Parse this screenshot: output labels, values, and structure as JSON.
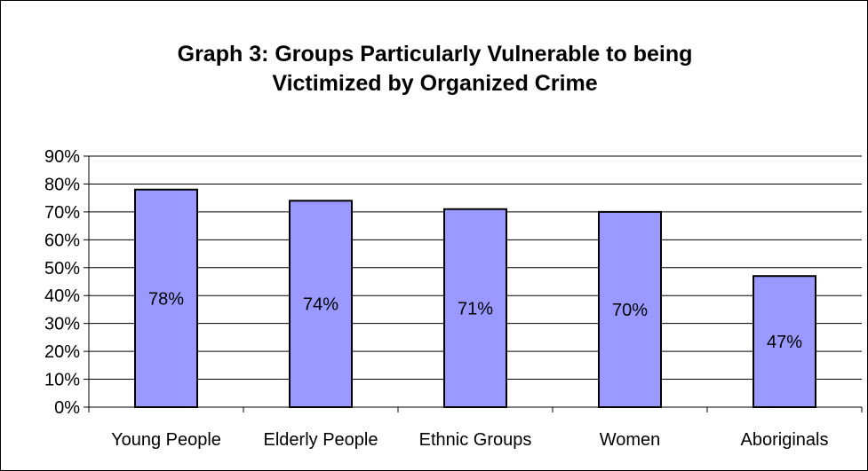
{
  "chart_data": {
    "type": "bar",
    "title_lines": [
      "Graph 3: Groups Particularly Vulnerable to being",
      "Victimized by Organized Crime"
    ],
    "categories": [
      "Young People",
      "Elderly People",
      "Ethnic Groups",
      "Women",
      "Aboriginals"
    ],
    "values": [
      78,
      74,
      71,
      70,
      47
    ],
    "data_labels": [
      "78%",
      "74%",
      "71%",
      "70%",
      "47%"
    ],
    "y_ticks": [
      "0%",
      "10%",
      "20%",
      "30%",
      "40%",
      "50%",
      "60%",
      "70%",
      "80%",
      "90%"
    ],
    "ylim": [
      0,
      90
    ],
    "xlabel": "",
    "ylabel": "",
    "grid": true,
    "legend": "none",
    "colors": {
      "bar_fill": "#9999ff",
      "bar_stroke": "#000000",
      "grid": "#000000",
      "text": "#000000"
    }
  }
}
